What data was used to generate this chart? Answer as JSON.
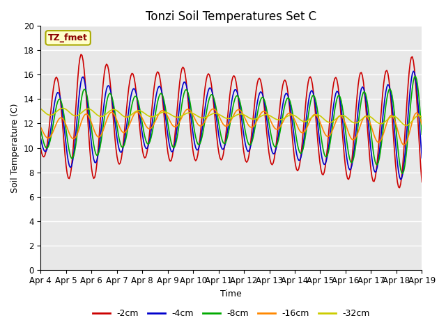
{
  "title": "Tonzi Soil Temperatures Set C",
  "xlabel": "Time",
  "ylabel": "Soil Temperature (C)",
  "annotation_text": "TZ_fmet",
  "annotation_color": "#8B0000",
  "annotation_bg": "#FFFFCC",
  "annotation_border": "#AAAA00",
  "ylim": [
    0,
    20
  ],
  "yticks": [
    0,
    2,
    4,
    6,
    8,
    10,
    12,
    14,
    16,
    18,
    20
  ],
  "xtick_labels": [
    "Apr 4",
    "Apr 5",
    "Apr 6",
    "Apr 7",
    "Apr 8",
    "Apr 9",
    "Apr 10",
    "Apr 11",
    "Apr 12",
    "Apr 13",
    "Apr 14",
    "Apr 15",
    "Apr 16",
    "Apr 17",
    "Apr 18",
    "Apr 19"
  ],
  "series_colors": [
    "#CC0000",
    "#0000CC",
    "#00AA00",
    "#FF8800",
    "#CCCC00"
  ],
  "series_labels": [
    "-2cm",
    "-4cm",
    "-8cm",
    "-16cm",
    "-32cm"
  ],
  "series_linewidth": 1.2,
  "bg_color": "#E8E8E8",
  "fig_bg_color": "#FFFFFF",
  "grid_color": "#FFFFFF",
  "title_fontsize": 12,
  "label_fontsize": 9,
  "tick_fontsize": 8.5
}
